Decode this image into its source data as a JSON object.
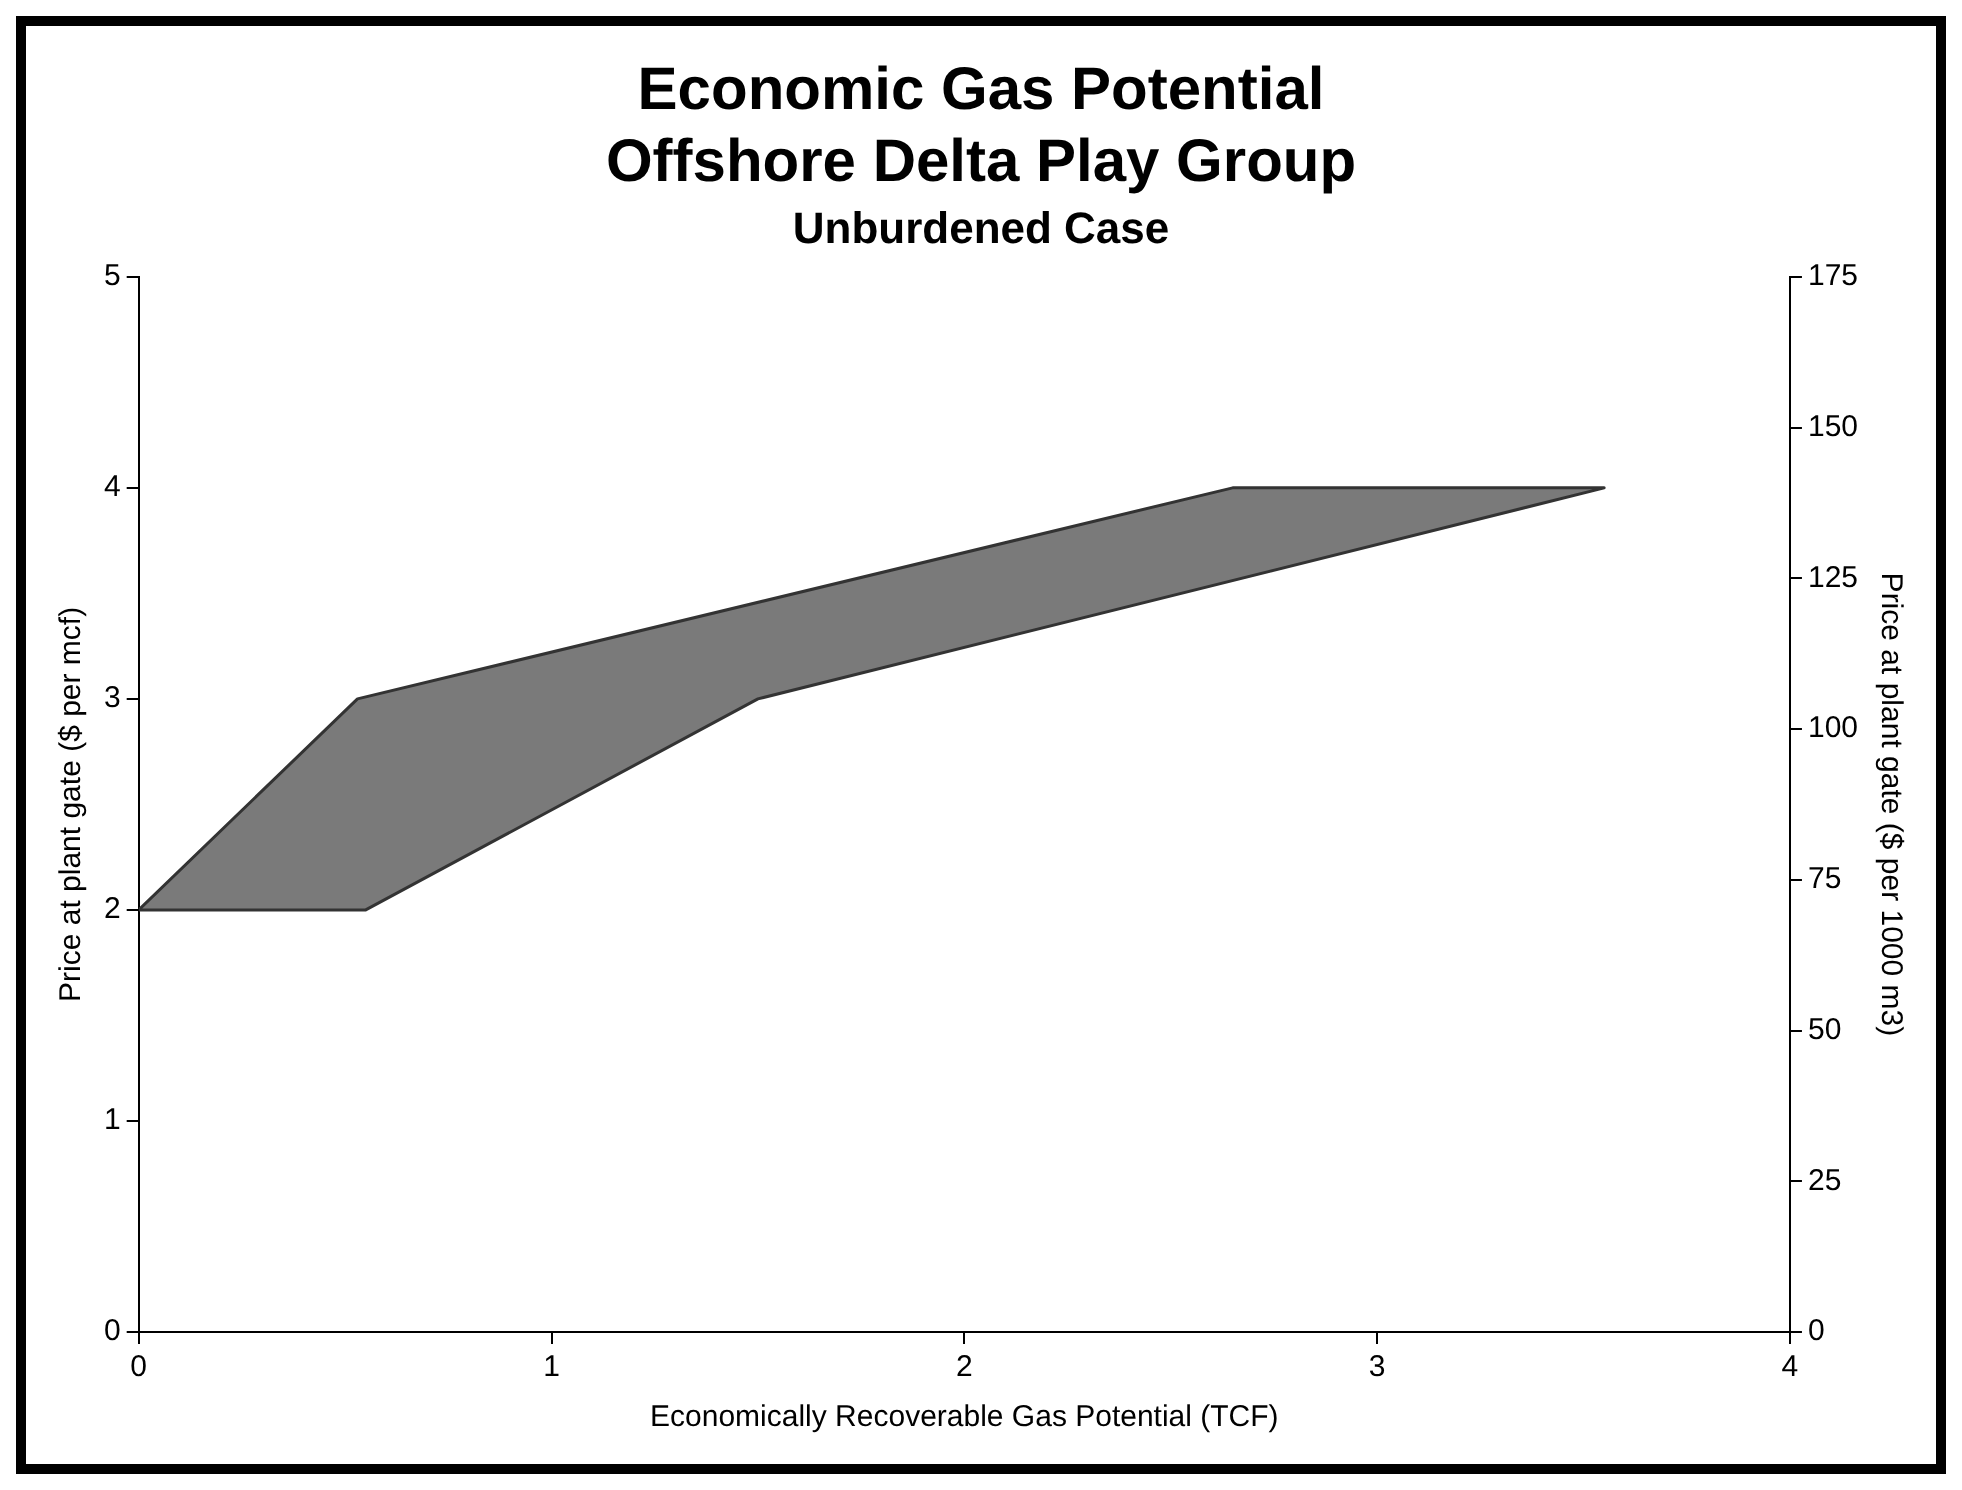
{
  "chart_data": {
    "type": "area",
    "title": [
      "Economic Gas Potential",
      "Offshore Delta Play Group"
    ],
    "subtitle": "Unburdened Case",
    "xlabel": "Economically Recoverable Gas Potential (TCF)",
    "ylabel": "Price at plant gate ($ per mcf)",
    "y2label": "Price at plant gate ($ per 1000 m3)",
    "series": [
      {
        "color": "#7a7a7a",
        "x": [
          0,
          0.53,
          2.65,
          3.55,
          1.5,
          0.55,
          0
        ],
        "values": [
          2,
          3,
          4,
          4,
          3,
          2,
          2
        ]
      }
    ],
    "xlim": [
      0,
      4
    ],
    "xticks": [
      0,
      1,
      2,
      3,
      4
    ],
    "ylim": [
      0,
      5
    ],
    "yticks": [
      0,
      1,
      2,
      3,
      4,
      5
    ],
    "y2lim": [
      0,
      175
    ],
    "y2ticks": [
      0,
      25,
      50,
      75,
      100,
      125,
      150,
      175
    ],
    "grid": false,
    "legend": false
  }
}
